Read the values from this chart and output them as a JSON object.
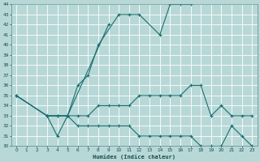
{
  "xlabel": "Humidex (Indice chaleur)",
  "bg_color": "#b8d8d8",
  "grid_color": "#ffffff",
  "line_color": "#1a6e6e",
  "ylim_min": 30,
  "ylim_max": 44,
  "xlim_min": -0.5,
  "xlim_max": 23.5,
  "line1_x": [
    0,
    3,
    4,
    5,
    6,
    7,
    8,
    10,
    11,
    12,
    14,
    15,
    16,
    17
  ],
  "line1_y": [
    35,
    33,
    31,
    33,
    36,
    37,
    40,
    43,
    43,
    43,
    41,
    44,
    44,
    44
  ],
  "line2_x": [
    3,
    5,
    9
  ],
  "line2_y": [
    33,
    33,
    42
  ],
  "line3_x": [
    0,
    3,
    4,
    5,
    6,
    7,
    8,
    9,
    10,
    11,
    12,
    13,
    14,
    15,
    16,
    17,
    18,
    19,
    20,
    21,
    22,
    23
  ],
  "line3_y": [
    35,
    33,
    33,
    33,
    33,
    33,
    34,
    34,
    34,
    34,
    35,
    35,
    35,
    35,
    35,
    36,
    36,
    33,
    34,
    33,
    33,
    33
  ],
  "line4_x": [
    0,
    3,
    4,
    5,
    6,
    7,
    8,
    9,
    10,
    11,
    12,
    13,
    14,
    15,
    16,
    17,
    18,
    19,
    20,
    21,
    22,
    23
  ],
  "line4_y": [
    35,
    33,
    33,
    33,
    32,
    32,
    32,
    32,
    32,
    32,
    31,
    31,
    31,
    31,
    31,
    31,
    30,
    30,
    30,
    32,
    31,
    30
  ]
}
